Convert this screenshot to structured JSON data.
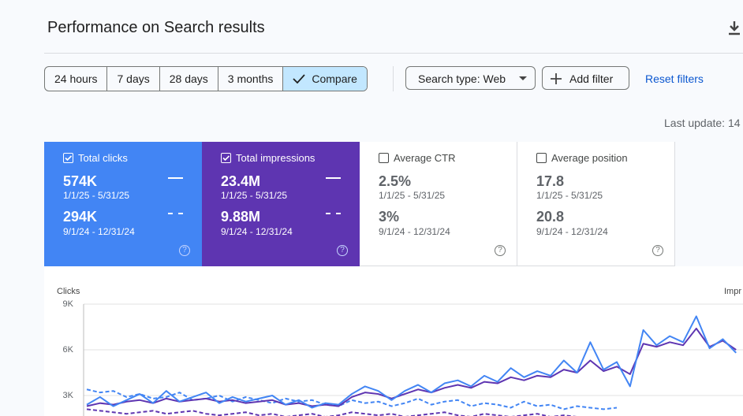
{
  "header": {
    "title": "Performance on Search results",
    "last_update": "Last update: 14"
  },
  "filters": {
    "periods": [
      "24 hours",
      "7 days",
      "28 days",
      "3 months",
      "Compare"
    ],
    "selected": 4,
    "search_type": "Search type: Web",
    "add_filter": "Add filter",
    "reset": "Reset filters"
  },
  "metric_cards": [
    {
      "label": "Total clicks",
      "selected": true,
      "color": "#4285f4",
      "current": {
        "value": "574K",
        "range": "1/1/25 - 5/31/25"
      },
      "previous": {
        "value": "294K",
        "range": "9/1/24 - 12/31/24"
      }
    },
    {
      "label": "Total impressions",
      "selected": true,
      "color": "#5e35b1",
      "current": {
        "value": "23.4M",
        "range": "1/1/25 - 5/31/25"
      },
      "previous": {
        "value": "9.88M",
        "range": "9/1/24 - 12/31/24"
      }
    },
    {
      "label": "Average CTR",
      "selected": false,
      "color": "#ffffff",
      "current": {
        "value": "2.5%",
        "range": "1/1/25 - 5/31/25"
      },
      "previous": {
        "value": "3%",
        "range": "9/1/24 - 12/31/24"
      }
    },
    {
      "label": "Average position",
      "selected": false,
      "color": "#ffffff",
      "current": {
        "value": "17.8",
        "range": "1/1/25 - 5/31/25"
      },
      "previous": {
        "value": "20.8",
        "range": "9/1/24 - 12/31/24"
      }
    }
  ],
  "chart_data": {
    "type": "line",
    "y_label": "Clicks",
    "y2_label": "Impr",
    "ylim": [
      0,
      9000
    ],
    "yticks": [
      {
        "value": 3000,
        "label": "3K"
      },
      {
        "value": 6000,
        "label": "6K"
      },
      {
        "value": 9000,
        "label": "9K"
      }
    ],
    "y2lim": [
      0,
      360000
    ],
    "grid": true,
    "series": [
      {
        "color": "#4285f4",
        "dashed": false,
        "axis": "y",
        "values": [
          2400,
          2900,
          2300,
          2700,
          3100,
          2500,
          3300,
          2600,
          2900,
          3200,
          2500,
          2900,
          2600,
          2800,
          3000,
          2400,
          2700,
          2200,
          2500,
          2400,
          3100,
          3600,
          3300,
          2700,
          3300,
          3700,
          3200,
          3800,
          4000,
          3600,
          4300,
          3900,
          4800,
          4200,
          4600,
          4300,
          5300,
          4500,
          6500,
          4700,
          5200,
          3600,
          7300,
          6300,
          6900,
          6500,
          8200,
          6100,
          6700,
          5800
        ]
      },
      {
        "color": "#5e35b1",
        "dashed": false,
        "axis": "y2",
        "values": [
          92000,
          100000,
          96000,
          104000,
          108000,
          100000,
          112000,
          104000,
          108000,
          112000,
          104000,
          108000,
          100000,
          104000,
          108000,
          96000,
          100000,
          92000,
          96000,
          92000,
          116000,
          128000,
          124000,
          112000,
          124000,
          136000,
          128000,
          140000,
          148000,
          140000,
          156000,
          152000,
          168000,
          160000,
          172000,
          168000,
          188000,
          180000,
          212000,
          184000,
          196000,
          176000,
          256000,
          248000,
          260000,
          252000,
          296000,
          248000,
          264000,
          240000
        ]
      },
      {
        "color": "#4285f4",
        "dashed": true,
        "axis": "y",
        "values": [
          3400,
          3200,
          3300,
          2900,
          3100,
          2800,
          2900,
          3200,
          2700,
          2800,
          3000,
          2600,
          2900,
          2700,
          2500,
          2800,
          2600,
          2700,
          2400,
          2300,
          2700,
          2500,
          2600,
          2300,
          2500,
          2800,
          2400,
          2600,
          2700,
          2300,
          2500,
          2400,
          2200,
          2600,
          2300,
          2400,
          2100,
          2300,
          2200,
          2100,
          2200
        ]
      },
      {
        "color": "#5e35b1",
        "dashed": true,
        "axis": "y2",
        "values": [
          84000,
          80000,
          76000,
          72000,
          76000,
          80000,
          72000,
          76000,
          80000,
          72000,
          68000,
          72000,
          76000,
          68000,
          72000,
          64000,
          68000,
          72000,
          64000,
          68000,
          76000,
          72000,
          68000,
          72000,
          64000,
          68000,
          72000,
          76000,
          68000,
          64000,
          72000,
          68000,
          64000,
          68000,
          72000,
          64000,
          68000,
          64000,
          60000,
          64000,
          60000
        ]
      }
    ]
  }
}
